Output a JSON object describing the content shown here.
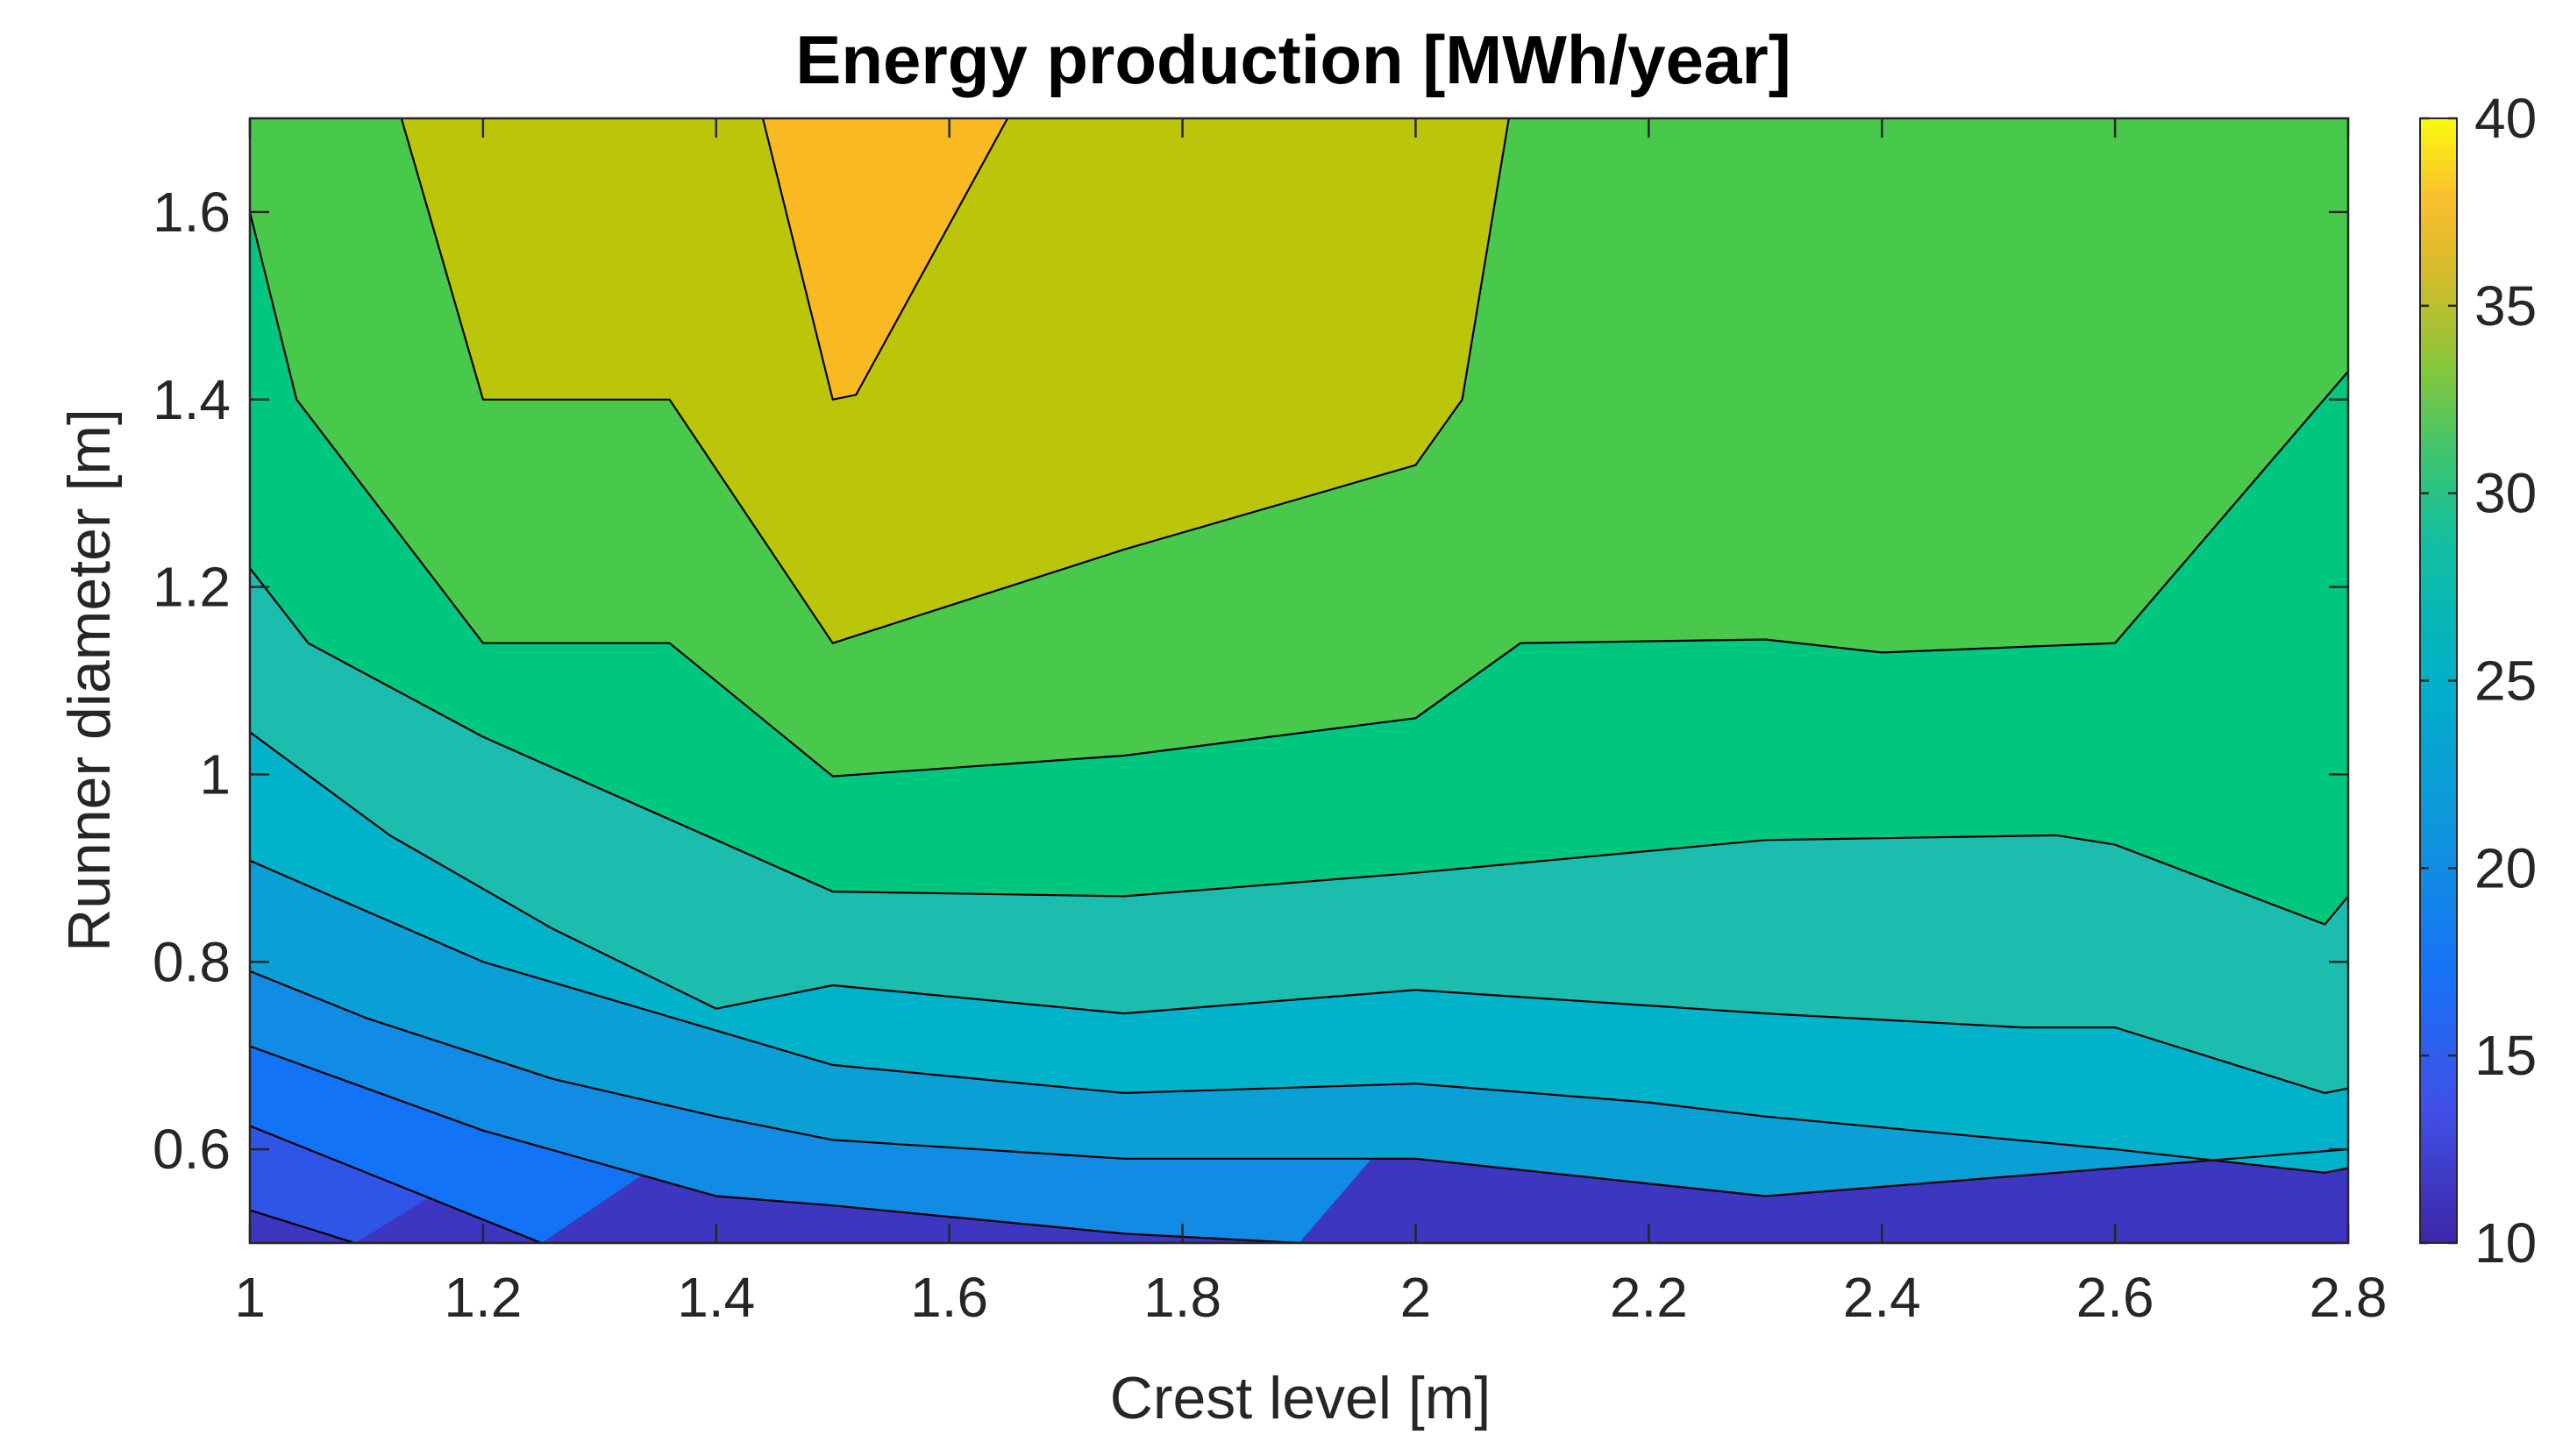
{
  "chart_data": {
    "type": "contourf",
    "title": "Energy production [MWh/year]",
    "xlabel": "Crest level [m]",
    "ylabel": "Runner diameter [m]",
    "xlim": [
      1,
      2.8
    ],
    "ylim": [
      0.5,
      1.7
    ],
    "xticks": [
      1,
      1.2,
      1.4,
      1.6,
      1.8,
      2,
      2.2,
      2.4,
      2.6,
      2.8
    ],
    "xtick_labels": [
      "1",
      "1.2",
      "1.4",
      "1.6",
      "1.8",
      "2",
      "2.2",
      "2.4",
      "2.6",
      "2.8"
    ],
    "yticks": [
      0.6,
      0.8,
      1,
      1.2,
      1.4,
      1.6
    ],
    "ytick_labels": [
      "0.6",
      "0.8",
      "1",
      "1.2",
      "1.4",
      "1.6"
    ],
    "colorbar": {
      "limits": [
        10,
        40
      ],
      "ticks": [
        10,
        15,
        20,
        25,
        30,
        35,
        40
      ],
      "tick_labels": [
        "10",
        "15",
        "20",
        "25",
        "30",
        "35",
        "40"
      ],
      "colormap": "parula"
    },
    "level_colors": [
      "#3c36c0",
      "#2e55e6",
      "#1273f6",
      "#118be4",
      "#0aa0d6",
      "#00b3cb",
      "#1cbcae",
      "#00c77f",
      "#49c94c",
      "#bbc60a",
      "#f9b922"
    ],
    "contour_levels": [
      11.5,
      14,
      16.5,
      19,
      21.5,
      24,
      26.5,
      29,
      31.5,
      34
    ],
    "contours": [
      {
        "level": 11.5,
        "points": [
          [
            1,
            0.535
          ],
          [
            1.09,
            0.5
          ]
        ]
      },
      {
        "level": 14,
        "points": [
          [
            1,
            0.625
          ],
          [
            1.25,
            0.5
          ]
        ]
      },
      {
        "level": 16.5,
        "points": [
          [
            1,
            0.71
          ],
          [
            1.2,
            0.62
          ],
          [
            1.4,
            0.55
          ],
          [
            1.5,
            0.54
          ],
          [
            1.75,
            0.51
          ],
          [
            1.9,
            0.5
          ]
        ]
      },
      {
        "level": 19,
        "points": [
          [
            1,
            0.79
          ],
          [
            1.1,
            0.74
          ],
          [
            1.26,
            0.675
          ],
          [
            1.4,
            0.635
          ],
          [
            1.5,
            0.61
          ],
          [
            1.75,
            0.59
          ],
          [
            2,
            0.59
          ],
          [
            2.3,
            0.55
          ],
          [
            2.8,
            0.6
          ]
        ]
      },
      {
        "level": 21.5,
        "points": [
          [
            1,
            0.908
          ],
          [
            1.2,
            0.8
          ],
          [
            1.38,
            0.734
          ],
          [
            1.5,
            0.69
          ],
          [
            1.75,
            0.66
          ],
          [
            2,
            0.67
          ],
          [
            2.2,
            0.65
          ],
          [
            2.3,
            0.635
          ],
          [
            2.6,
            0.6
          ],
          [
            2.78,
            0.575
          ],
          [
            2.8,
            0.58
          ]
        ]
      },
      {
        "level": 24,
        "points": [
          [
            1,
            1.045
          ],
          [
            1.12,
            0.935
          ],
          [
            1.26,
            0.835
          ],
          [
            1.4,
            0.75
          ],
          [
            1.5,
            0.775
          ],
          [
            1.75,
            0.745
          ],
          [
            2,
            0.77
          ],
          [
            2.3,
            0.745
          ],
          [
            2.52,
            0.73
          ],
          [
            2.6,
            0.73
          ],
          [
            2.78,
            0.66
          ],
          [
            2.8,
            0.665
          ]
        ]
      },
      {
        "level": 26.5,
        "points": [
          [
            1,
            1.22
          ],
          [
            1.05,
            1.14
          ],
          [
            1.2,
            1.04
          ],
          [
            1.4,
            0.93
          ],
          [
            1.5,
            0.875
          ],
          [
            1.75,
            0.87
          ],
          [
            2,
            0.895
          ],
          [
            2.3,
            0.93
          ],
          [
            2.55,
            0.935
          ],
          [
            2.6,
            0.925
          ],
          [
            2.78,
            0.84
          ],
          [
            2.8,
            0.87
          ]
        ]
      },
      {
        "level": 29,
        "points": [
          [
            1,
            1.6
          ],
          [
            1.04,
            1.4
          ],
          [
            1.2,
            1.14
          ],
          [
            1.36,
            1.14
          ],
          [
            1.5,
            0.998
          ],
          [
            1.75,
            1.02
          ],
          [
            2,
            1.06
          ],
          [
            2.09,
            1.14
          ],
          [
            2.3,
            1.144
          ],
          [
            2.4,
            1.13
          ],
          [
            2.6,
            1.14
          ],
          [
            2.8,
            1.43
          ]
        ]
      },
      {
        "level": 31.5,
        "points": [
          [
            1.13,
            1.7
          ],
          [
            1.2,
            1.4
          ],
          [
            1.36,
            1.4
          ],
          [
            1.5,
            1.14
          ],
          [
            1.75,
            1.24
          ],
          [
            2,
            1.33
          ],
          [
            2.04,
            1.4
          ],
          [
            2.08,
            1.7
          ]
        ]
      },
      {
        "level": 34,
        "points": [
          [
            1.44,
            1.7
          ],
          [
            1.5,
            1.4
          ],
          [
            1.52,
            1.405
          ],
          [
            1.65,
            1.7
          ]
        ]
      }
    ]
  }
}
